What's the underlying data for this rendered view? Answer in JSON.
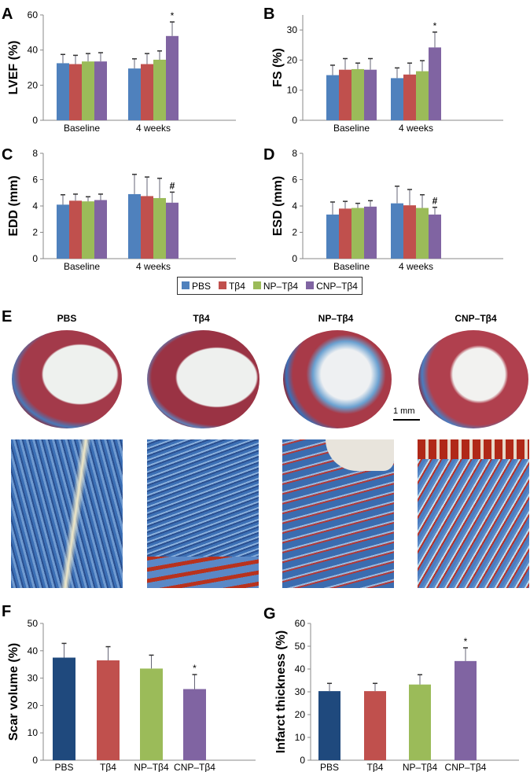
{
  "colors": {
    "PBS": "#4f81bd",
    "PBS_dark": "#1f497d",
    "Tb4": "#c0504d",
    "NP": "#9bbb59",
    "CNP": "#8064a2"
  },
  "legend": [
    "PBS",
    "Tβ4",
    "NP–Tβ4",
    "CNP–Tβ4"
  ],
  "panel_e": {
    "label": "E",
    "headings": [
      "PBS",
      "Tβ4",
      "NP–Tβ4",
      "CNP–Tβ4"
    ],
    "scale_bar": "1 mm"
  },
  "chart_data": [
    {
      "panel": "A",
      "type": "bar",
      "ylabel": "LVEF (%)",
      "categories": [
        "Baseline",
        "4 weeks"
      ],
      "ylim": [
        0,
        60
      ],
      "yticks": [
        0,
        20,
        40,
        60
      ],
      "series": [
        {
          "name": "PBS",
          "values": [
            32.5,
            29.5
          ],
          "error_top": [
            37.5,
            35
          ]
        },
        {
          "name": "Tβ4",
          "values": [
            32,
            32
          ],
          "error_top": [
            37,
            38
          ]
        },
        {
          "name": "NP–Tβ4",
          "values": [
            33.5,
            34.5
          ],
          "error_top": [
            38,
            39.5
          ]
        },
        {
          "name": "CNP–Tβ4",
          "values": [
            33.5,
            48
          ],
          "error_top": [
            38.5,
            56
          ]
        }
      ],
      "annotations": [
        {
          "series": 3,
          "category": 1,
          "text": "*"
        }
      ]
    },
    {
      "panel": "B",
      "type": "bar",
      "ylabel": "FS (%)",
      "categories": [
        "Baseline",
        "4 weeks"
      ],
      "ylim": [
        0,
        35
      ],
      "yticks": [
        0,
        10,
        20,
        30
      ],
      "series": [
        {
          "name": "PBS",
          "values": [
            15,
            14
          ],
          "error_top": [
            18.3,
            17.4
          ]
        },
        {
          "name": "Tβ4",
          "values": [
            16.8,
            15.2
          ],
          "error_top": [
            20.5,
            19
          ]
        },
        {
          "name": "NP–Tβ4",
          "values": [
            17,
            16.3
          ],
          "error_top": [
            19,
            19.8
          ]
        },
        {
          "name": "CNP–Tβ4",
          "values": [
            16.8,
            24.2
          ],
          "error_top": [
            20.5,
            29.3
          ]
        }
      ],
      "annotations": [
        {
          "series": 3,
          "category": 1,
          "text": "*"
        }
      ]
    },
    {
      "panel": "C",
      "type": "bar",
      "ylabel": "EDD (mm)",
      "categories": [
        "Baseline",
        "4 weeks"
      ],
      "ylim": [
        0,
        8
      ],
      "yticks": [
        0,
        2,
        4,
        6,
        8
      ],
      "series": [
        {
          "name": "PBS",
          "values": [
            4.1,
            4.9
          ],
          "error_top": [
            4.85,
            6.4
          ]
        },
        {
          "name": "Tβ4",
          "values": [
            4.4,
            4.75
          ],
          "error_top": [
            4.9,
            6.2
          ]
        },
        {
          "name": "NP–Tβ4",
          "values": [
            4.35,
            4.6
          ],
          "error_top": [
            4.7,
            6.1
          ]
        },
        {
          "name": "CNP–Tβ4",
          "values": [
            4.45,
            4.25
          ],
          "error_top": [
            4.9,
            5.05
          ]
        }
      ],
      "annotations": [
        {
          "series": 3,
          "category": 1,
          "text": "#"
        }
      ]
    },
    {
      "panel": "D",
      "type": "bar",
      "ylabel": "ESD (mm)",
      "categories": [
        "Baseline",
        "4 weeks"
      ],
      "ylim": [
        0,
        8
      ],
      "yticks": [
        0,
        2,
        4,
        6,
        8
      ],
      "series": [
        {
          "name": "PBS",
          "values": [
            3.35,
            4.2
          ],
          "error_top": [
            4.3,
            5.5
          ]
        },
        {
          "name": "Tβ4",
          "values": [
            3.8,
            4.05
          ],
          "error_top": [
            4.35,
            5.25
          ]
        },
        {
          "name": "NP–Tβ4",
          "values": [
            3.85,
            3.85
          ],
          "error_top": [
            4.2,
            4.85
          ]
        },
        {
          "name": "CNP–Tβ4",
          "values": [
            3.95,
            3.35
          ],
          "error_top": [
            4.4,
            3.9
          ]
        }
      ],
      "annotations": [
        {
          "series": 3,
          "category": 1,
          "text": "#"
        }
      ]
    },
    {
      "panel": "F",
      "type": "bar",
      "ylabel": "Scar volume (%)",
      "categories": [
        "PBS",
        "Tβ4",
        "NP–Tβ4",
        "CNP–Tβ4"
      ],
      "ylim": [
        0,
        50
      ],
      "yticks": [
        0,
        10,
        20,
        30,
        40,
        50
      ],
      "values": [
        37.5,
        36.5,
        33.5,
        26
      ],
      "error_top": [
        42.7,
        41.5,
        38.4,
        31.3
      ],
      "annotations": [
        {
          "category": 3,
          "text": "*"
        }
      ]
    },
    {
      "panel": "G",
      "type": "bar",
      "ylabel": "Infarct thickness (%)",
      "categories": [
        "PBS",
        "Tβ4",
        "NP–Tβ4",
        "CNP–Tβ4"
      ],
      "ylim": [
        0,
        60
      ],
      "yticks": [
        0,
        10,
        20,
        30,
        40,
        50,
        60
      ],
      "values": [
        30.3,
        30.3,
        33.2,
        43.5
      ],
      "error_top": [
        33.7,
        33.7,
        37.5,
        49.3
      ],
      "annotations": [
        {
          "category": 3,
          "text": "*"
        }
      ]
    }
  ]
}
